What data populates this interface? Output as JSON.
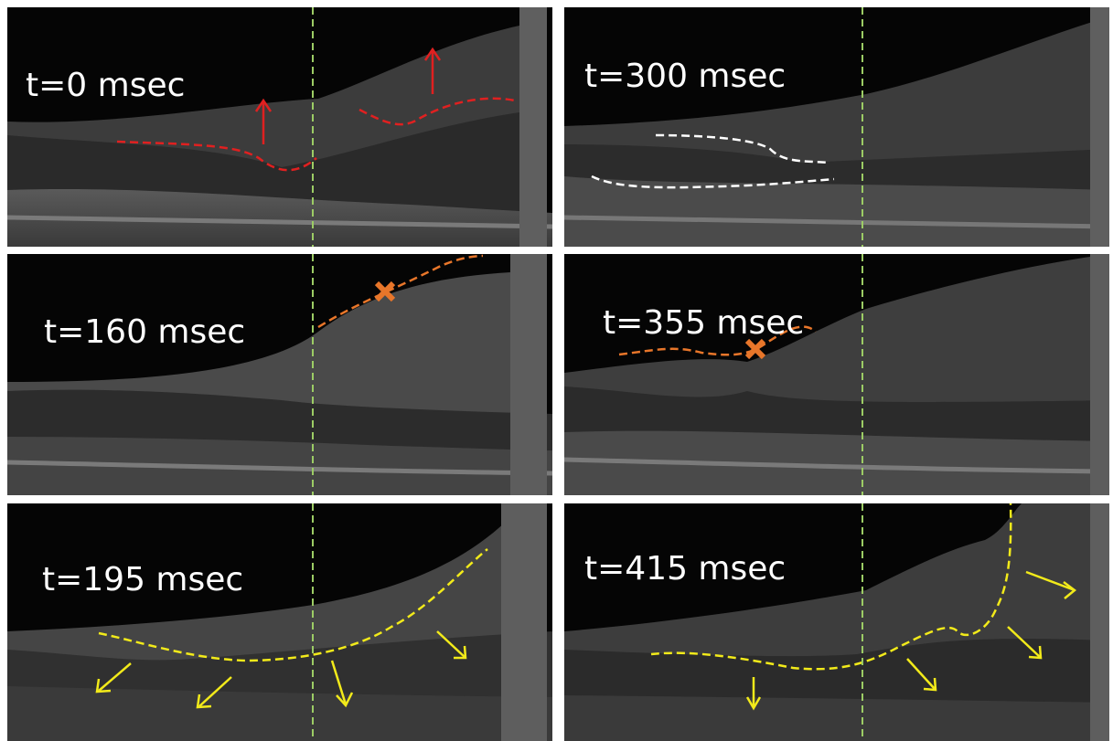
{
  "panels": [
    {
      "id": "p0",
      "label": "t=0 msec"
    },
    {
      "id": "p300",
      "label": "t=300 msec"
    },
    {
      "id": "p160",
      "label": "t=160 msec"
    },
    {
      "id": "p355",
      "label": "t=355 msec"
    },
    {
      "id": "p195",
      "label": "t=195 msec"
    },
    {
      "id": "p415",
      "label": "t=415 msec"
    }
  ],
  "colors": {
    "background": "#ffffff",
    "reference_line": "#9ccc65",
    "red_marker": "#e02020",
    "white_marker": "#ffffff",
    "orange_marker": "#e8762a",
    "yellow_marker": "#f2ea1a"
  }
}
